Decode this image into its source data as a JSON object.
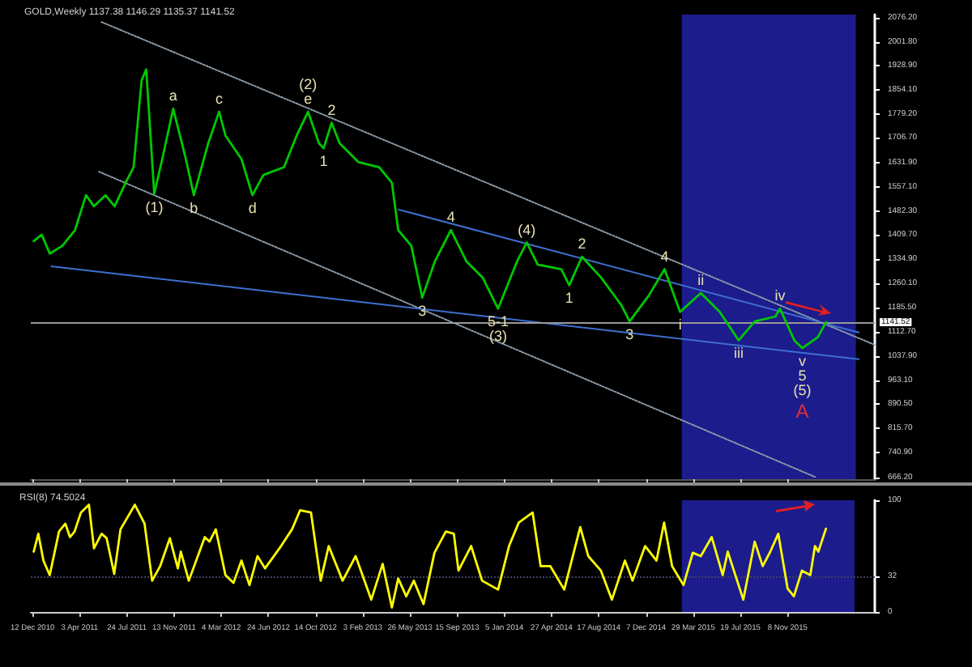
{
  "chart_data": [
    {
      "type": "line",
      "title": "GOLD,Weekly 1137.38 1146.29 1135.37 1141.52",
      "marker": "none",
      "tick_labels": "y",
      "xticks": [
        {
          "value": "2010-12-12",
          "label": null
        },
        {
          "value": "2011-04-03",
          "label": null
        },
        {
          "value": "2011-07-24",
          "label": null
        },
        {
          "value": "2011-11-13",
          "label": null
        },
        {
          "value": "2012-03-04",
          "label": null
        },
        {
          "value": "2012-06-24",
          "label": null
        },
        {
          "value": "2012-10-14",
          "label": null
        },
        {
          "value": "2013-02-03",
          "label": null
        },
        {
          "value": "2013-05-26",
          "label": null
        },
        {
          "value": "2013-09-15",
          "label": null
        },
        {
          "value": "2014-01-05",
          "label": null
        },
        {
          "value": "2014-04-27",
          "label": null
        },
        {
          "value": "2014-08-17",
          "label": null
        },
        {
          "value": "2014-12-07",
          "label": null
        },
        {
          "value": "2015-03-29",
          "label": null
        },
        {
          "value": "2015-07-19",
          "label": null
        },
        {
          "value": "2015-11-08",
          "label": null
        }
      ],
      "xlim": [
        "2010-12-08",
        "2016-06-02"
      ],
      "ylim": [
        660,
        2085
      ],
      "yticks": [
        {
          "value": 2076.2,
          "label": "2076.20"
        },
        {
          "value": 2001.8,
          "label": "2001.80"
        },
        {
          "value": 1928.9,
          "label": "1928.90"
        },
        {
          "value": 1854.1,
          "label": "1854.10"
        },
        {
          "value": 1779.2,
          "label": "1779.20"
        },
        {
          "value": 1706.7,
          "label": "1706.70"
        },
        {
          "value": 1631.9,
          "label": "1631.90"
        },
        {
          "value": 1557.1,
          "label": "1557.10"
        },
        {
          "value": 1482.3,
          "label": "1482.30"
        },
        {
          "value": 1409.7,
          "label": "1409.70"
        },
        {
          "value": 1334.9,
          "label": "1334.90"
        },
        {
          "value": 1260.1,
          "label": "1260.10"
        },
        {
          "value": 1185.5,
          "label": "1185.50"
        },
        {
          "value": 1112.7,
          "label": "1112.70"
        },
        {
          "value": 1037.9,
          "label": "1037.90"
        },
        {
          "value": 963.1,
          "label": "963.10"
        },
        {
          "value": 890.5,
          "label": "890.50"
        },
        {
          "value": 815.7,
          "label": "815.70"
        },
        {
          "value": 740.9,
          "label": "740.90"
        },
        {
          "value": 666.2,
          "label": "666.20"
        }
      ],
      "series": [
        {
          "color": "#00c800",
          "x": [
            "2010-12-15",
            "2011-01-03",
            "2011-01-22",
            "2011-02-21",
            "2011-03-23",
            "2011-04-18",
            "2011-05-07",
            "2011-06-03",
            "2011-06-25",
            "2011-07-21",
            "2011-08-09",
            "2011-08-28",
            "2011-09-08",
            "2011-09-27",
            "2011-10-16",
            "2011-11-11",
            "2011-12-11",
            "2011-12-30",
            "2012-02-02",
            "2012-02-28",
            "2012-03-14",
            "2012-04-21",
            "2012-05-17",
            "2012-06-12",
            "2012-07-31",
            "2012-08-30",
            "2012-09-26",
            "2012-10-22",
            "2012-11-02",
            "2012-11-21",
            "2012-12-10",
            "2013-01-24",
            "2013-03-14",
            "2013-04-13",
            "2013-04-28",
            "2013-05-29",
            "2013-06-24",
            "2013-07-24",
            "2013-08-31",
            "2013-10-07",
            "2013-11-14",
            "2013-12-21",
            "2014-02-04",
            "2014-02-27",
            "2014-03-25",
            "2014-05-20",
            "2014-06-08",
            "2014-07-08",
            "2014-08-22",
            "2014-10-10",
            "2014-10-29",
            "2014-12-13",
            "2015-01-20",
            "2015-02-26",
            "2015-04-16",
            "2015-05-31",
            "2015-07-15",
            "2015-08-22",
            "2015-10-10",
            "2015-10-21",
            "2015-11-24",
            "2015-12-13",
            "2016-01-19",
            "2016-02-07"
          ],
          "values": [
            1390,
            1410,
            1352,
            1376,
            1424,
            1531,
            1497,
            1531,
            1497,
            1569,
            1617,
            1883,
            1917,
            1535,
            1642,
            1796,
            1642,
            1531,
            1690,
            1787,
            1714,
            1642,
            1531,
            1593,
            1617,
            1714,
            1787,
            1690,
            1675,
            1753,
            1690,
            1632,
            1617,
            1569,
            1424,
            1376,
            1217,
            1328,
            1424,
            1328,
            1279,
            1183,
            1328,
            1386,
            1318,
            1304,
            1255,
            1342,
            1279,
            1193,
            1144,
            1222,
            1304,
            1173,
            1231,
            1173,
            1086,
            1144,
            1159,
            1183,
            1086,
            1062,
            1096,
            1141.52
          ]
        },
        {
          "type": "line",
          "color": "#8a9aa8",
          "line_style": "dotted",
          "x": [
            "2011-05-25",
            "2016-06-02"
          ],
          "values": [
            2062,
            1072
          ]
        },
        {
          "type": "line",
          "color": "#8a9aa8",
          "line_style": "dotted",
          "x": [
            "2011-05-19",
            "2016-01-12"
          ],
          "values": [
            1603,
            667
          ]
        },
        {
          "type": "line",
          "color": "#3f6fd0",
          "line_style": "solid",
          "x": [
            "2011-01-26",
            "2016-04-25"
          ],
          "values": [
            1313,
            1028
          ]
        },
        {
          "type": "line",
          "color": "#3f6fd0",
          "line_style": "solid",
          "x": [
            "2013-04-29",
            "2016-04-25"
          ],
          "values": [
            1487,
            1110
          ]
        }
      ],
      "bands": [
        {
          "axis": "x",
          "from": "2015-03-02",
          "to": "2016-04-18",
          "color": "#1c1c8c"
        }
      ],
      "ref_lines": [
        {
          "axis": "y",
          "value": 1141.52,
          "label": "1141.52",
          "color": "#9a9a9a"
        }
      ],
      "annotations": [
        {
          "text": "(1)",
          "x": "2011-09-27",
          "y": 1535
        },
        {
          "text": "a",
          "x": "2011-11-11",
          "y": 1796
        },
        {
          "text": "b",
          "x": "2011-12-30",
          "y": 1531
        },
        {
          "text": "c",
          "x": "2012-02-28",
          "y": 1787
        },
        {
          "text": "d",
          "x": "2012-05-17",
          "y": 1531
        },
        {
          "text": "e",
          "x": "2012-09-26",
          "y": 1787
        },
        {
          "text": "(2)",
          "x": "2012-09-26",
          "y": 1787
        },
        {
          "text": "1",
          "x": "2012-11-02",
          "y": 1675
        },
        {
          "text": "2",
          "x": "2012-11-21",
          "y": 1753
        },
        {
          "text": "3",
          "x": "2013-06-24",
          "y": 1217
        },
        {
          "text": "4",
          "x": "2013-08-31",
          "y": 1424
        },
        {
          "text": "5-1",
          "x": "2013-12-21",
          "y": 1183
        },
        {
          "text": "(3)",
          "x": "2013-12-21",
          "y": 1183
        },
        {
          "text": "(4)",
          "x": "2014-02-27",
          "y": 1386
        },
        {
          "text": "1",
          "x": "2014-06-08",
          "y": 1255
        },
        {
          "text": "2",
          "x": "2014-07-08",
          "y": 1342
        },
        {
          "text": "3",
          "x": "2014-10-29",
          "y": 1144
        },
        {
          "text": "4",
          "x": "2015-01-20",
          "y": 1304
        },
        {
          "text": "i",
          "x": "2015-02-26",
          "y": 1173
        },
        {
          "text": "ii",
          "x": "2015-04-16",
          "y": 1231
        },
        {
          "text": "iii",
          "x": "2015-07-15",
          "y": 1086
        },
        {
          "text": "iv",
          "x": "2015-10-21",
          "y": 1183
        },
        {
          "text": "v",
          "x": "2015-12-13",
          "y": 1062
        },
        {
          "text": "5",
          "x": "2015-12-13",
          "y": 1062
        },
        {
          "text": "(5)",
          "x": "2015-12-13",
          "y": 1062
        },
        "A"
      ]
    },
    {
      "type": "line",
      "marker": "none",
      "xlim": [
        "2010-12-08",
        "2016-06-02"
      ],
      "ylim": [
        0,
        100
      ],
      "yticks": [
        0,
        32,
        100
      ],
      "xticks": [
        {
          "value": "2010-12-12",
          "label": "12 Dec 2010"
        },
        {
          "value": "2011-04-03",
          "label": "3 Apr 2011"
        },
        {
          "value": "2011-07-24",
          "label": "24 Jul 2011"
        },
        {
          "value": "2011-11-13",
          "label": "13 Nov 2011"
        },
        {
          "value": "2012-03-04",
          "label": "4 Mar 2012"
        },
        {
          "value": "2012-06-24",
          "label": "24 Jun 2012"
        },
        {
          "value": "2012-10-14",
          "label": "14 Oct 2012"
        },
        {
          "value": "2013-02-03",
          "label": "3 Feb 2013"
        },
        {
          "value": "2013-05-26",
          "label": "26 May 2013"
        },
        {
          "value": "2013-09-15",
          "label": "15 Sep 2013"
        },
        {
          "value": "2014-01-05",
          "label": "5 Jan 2014"
        },
        {
          "value": "2014-04-27",
          "label": "27 Apr 2014"
        },
        {
          "value": "2014-08-17",
          "label": "17 Aug 2014"
        },
        {
          "value": "2014-12-07",
          "label": "7 Dec 2014"
        },
        {
          "value": "2015-03-29",
          "label": "29 Mar 2015"
        },
        {
          "value": "2015-07-19",
          "label": "19 Jul 2015"
        },
        {
          "value": "2015-11-08",
          "label": "8 Nov 2015"
        }
      ],
      "series": [
        {
          "color": "#ffff00",
          "x": [
            "2010-12-15",
            "2010-12-26",
            "2011-01-07",
            "2011-01-22",
            "2011-02-13",
            "2011-02-28",
            "2011-03-11",
            "2011-03-22",
            "2011-04-06",
            "2011-04-25",
            "2011-05-07",
            "2011-05-25",
            "2011-06-06",
            "2011-06-24",
            "2011-07-09",
            "2011-08-12",
            "2011-09-04",
            "2011-09-22",
            "2011-10-11",
            "2011-11-03",
            "2011-11-22",
            "2011-11-29",
            "2011-12-18",
            "2012-01-25",
            "2012-02-05",
            "2012-02-20",
            "2012-03-14",
            "2012-04-02",
            "2012-04-21",
            "2012-05-10",
            "2012-05-29",
            "2012-06-16",
            "2012-07-24",
            "2012-08-19",
            "2012-09-07",
            "2012-10-03",
            "2012-10-26",
            "2012-11-14",
            "2012-12-17",
            "2013-01-17",
            "2013-02-23",
            "2013-03-22",
            "2013-04-13",
            "2013-04-28",
            "2013-05-17",
            "2013-06-04",
            "2013-06-27",
            "2013-07-23",
            "2013-08-19",
            "2013-09-07",
            "2013-09-18",
            "2013-10-18",
            "2013-11-13",
            "2013-12-21",
            "2014-01-16",
            "2014-02-08",
            "2014-03-13",
            "2014-04-01",
            "2014-04-24",
            "2014-05-27",
            "2014-07-04",
            "2014-07-23",
            "2014-08-22",
            "2014-09-17",
            "2014-10-18",
            "2014-11-05",
            "2014-12-05",
            "2015-01-01",
            "2015-01-19",
            "2015-02-07",
            "2015-03-06",
            "2015-03-28",
            "2015-04-16",
            "2015-05-12",
            "2015-06-07",
            "2015-06-19",
            "2015-07-26",
            "2015-08-22",
            "2015-09-10",
            "2015-09-28",
            "2015-10-17",
            "2015-11-08",
            "2015-11-23",
            "2015-12-12",
            "2016-01-01",
            "2016-01-12",
            "2016-01-20",
            "2016-02-07"
          ],
          "values": [
            54,
            70,
            46,
            33,
            72,
            79,
            67,
            72,
            89,
            96,
            57,
            70,
            66,
            34,
            74,
            96,
            79,
            28,
            41,
            66,
            39,
            54,
            28,
            67,
            63,
            74,
            33,
            26,
            46,
            24,
            50,
            39,
            59,
            74,
            91,
            89,
            28,
            59,
            28,
            50,
            11,
            43,
            4,
            30,
            14,
            28,
            7,
            53,
            72,
            70,
            37,
            59,
            28,
            20,
            59,
            80,
            89,
            41,
            41,
            20,
            76,
            50,
            37,
            11,
            46,
            28,
            59,
            46,
            80,
            41,
            24,
            53,
            50,
            67,
            33,
            54,
            11,
            63,
            41,
            54,
            70,
            21,
            14,
            37,
            33,
            59,
            54,
            74.5
          ]
        }
      ],
      "bands": [
        {
          "axis": "x",
          "from": "2015-03-02",
          "to": "2016-04-15",
          "color": "#1c1c8c"
        }
      ],
      "ref_lines": [
        {
          "axis": "y",
          "value": 32,
          "color": "#404060",
          "line_style": "dotted"
        }
      ],
      "annotations": [
        "RSI(8) 74.5024"
      ]
    }
  ]
}
